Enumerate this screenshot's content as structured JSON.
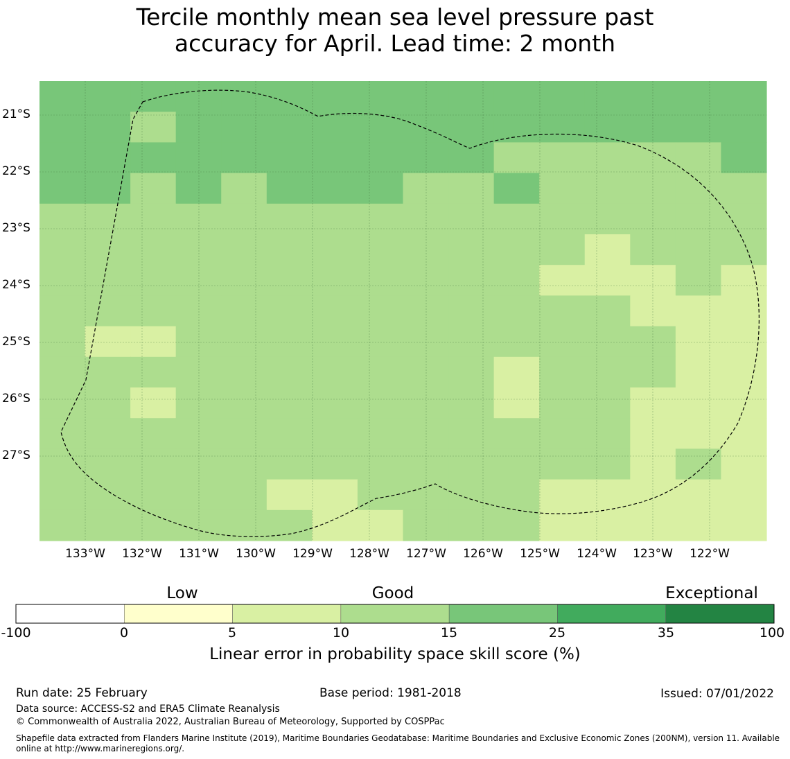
{
  "title": {
    "line1": "Tercile monthly mean sea level pressure past",
    "line2": "accuracy for April. Lead time: 2 month"
  },
  "map": {
    "lat_labels": [
      "21°S",
      "22°S",
      "23°S",
      "24°S",
      "25°S",
      "26°S",
      "27°S"
    ],
    "lon_labels": [
      "133°W",
      "132°W",
      "131°W",
      "130°W",
      "129°W",
      "128°W",
      "127°W",
      "126°W",
      "125°W",
      "124°W",
      "123°W",
      "122°W"
    ],
    "boundary_style": "dashed black outline (EEZ boundary)",
    "grid_categories_note": "cell values are category indices 2 = 5-10, 3 = 10-15, 4 = 15-25",
    "grid_rows_north_to_south": [
      [
        4,
        4,
        4,
        4,
        4,
        4,
        4,
        4,
        4,
        4,
        4,
        4,
        4,
        4,
        4,
        4
      ],
      [
        4,
        4,
        3,
        4,
        4,
        4,
        4,
        4,
        4,
        4,
        4,
        4,
        4,
        4,
        4,
        4
      ],
      [
        4,
        4,
        4,
        4,
        4,
        4,
        4,
        4,
        4,
        4,
        3,
        3,
        3,
        3,
        3,
        4
      ],
      [
        4,
        4,
        3,
        4,
        3,
        4,
        4,
        4,
        3,
        3,
        4,
        3,
        3,
        3,
        3,
        3
      ],
      [
        3,
        3,
        3,
        3,
        3,
        3,
        3,
        3,
        3,
        3,
        3,
        3,
        3,
        3,
        3,
        3
      ],
      [
        3,
        3,
        3,
        3,
        3,
        3,
        3,
        3,
        3,
        3,
        3,
        3,
        2,
        3,
        3,
        3
      ],
      [
        3,
        3,
        3,
        3,
        3,
        3,
        3,
        3,
        3,
        3,
        3,
        2,
        2,
        2,
        3,
        2
      ],
      [
        3,
        3,
        3,
        3,
        3,
        3,
        3,
        3,
        3,
        3,
        3,
        3,
        3,
        2,
        2,
        2
      ],
      [
        3,
        2,
        2,
        3,
        3,
        3,
        3,
        3,
        3,
        3,
        3,
        3,
        3,
        3,
        2,
        2
      ],
      [
        3,
        3,
        3,
        3,
        3,
        3,
        3,
        3,
        3,
        3,
        2,
        3,
        3,
        3,
        2,
        2
      ],
      [
        3,
        3,
        2,
        3,
        3,
        3,
        3,
        3,
        3,
        3,
        2,
        3,
        3,
        2,
        2,
        2
      ],
      [
        3,
        3,
        3,
        3,
        3,
        3,
        3,
        3,
        3,
        3,
        3,
        3,
        3,
        2,
        2,
        2
      ],
      [
        3,
        3,
        3,
        3,
        3,
        3,
        3,
        3,
        3,
        3,
        3,
        3,
        3,
        2,
        3,
        2
      ],
      [
        3,
        3,
        3,
        3,
        3,
        2,
        2,
        3,
        3,
        3,
        3,
        2,
        2,
        2,
        2,
        2
      ],
      [
        3,
        3,
        3,
        3,
        3,
        3,
        2,
        2,
        3,
        3,
        3,
        2,
        2,
        2,
        2,
        2
      ]
    ]
  },
  "colorbar": {
    "categories": [
      "Low",
      "Good",
      "Exceptional"
    ],
    "ticks": [
      "-100",
      "0",
      "5",
      "10",
      "15",
      "25",
      "35",
      "100"
    ],
    "colors": [
      "#ffffff",
      "#ffffcc",
      "#d9f0a3",
      "#addd8e",
      "#78c679",
      "#41ab5d",
      "#238443"
    ],
    "label": "Linear error in probability space skill score (%)"
  },
  "footer": {
    "run_date": "Run date: 25 February",
    "base_period": "Base period: 1981-2018",
    "issued": "Issued: 07/01/2022",
    "data_source": "Data source: ACCESS-S2 and ERA5 Climate Reanalysis",
    "copyright": "© Commonwealth of Australia 2022, Australian Bureau of Meteorology, Supported by COSPPac",
    "shapefile_line1": "Shapefile data extracted from Flanders Marine Institute (2019), Maritime Boundaries Geodatabase: Maritime Boundaries and Exclusive Economic Zones (200NM), version 11. Available",
    "shapefile_line2": "online at http://www.marineregions.org/."
  }
}
